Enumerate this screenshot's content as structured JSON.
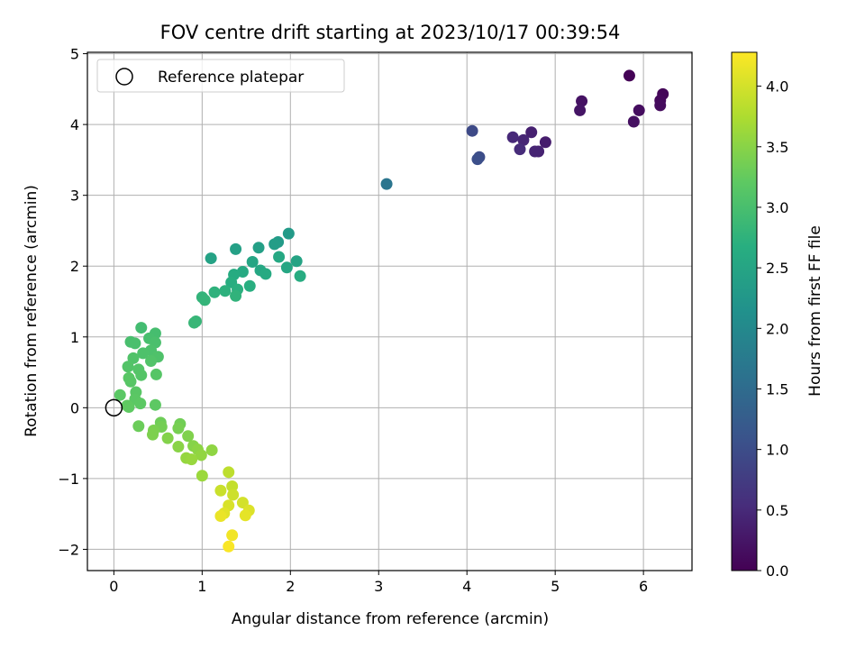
{
  "chart_data": {
    "type": "scatter",
    "title": "FOV centre drift starting at 2023/10/17 00:39:54",
    "xlabel": "Angular distance from reference (arcmin)",
    "ylabel": "Rotation from reference (arcmin)",
    "xlim": [
      -0.3,
      6.55
    ],
    "ylim": [
      -2.3,
      5.02
    ],
    "xticks": [
      "0",
      "1",
      "2",
      "3",
      "4",
      "5",
      "6"
    ],
    "xtick_values": [
      0,
      1,
      2,
      3,
      4,
      5,
      6
    ],
    "yticks": [
      "−2",
      "−1",
      "0",
      "1",
      "2",
      "3",
      "4",
      "5"
    ],
    "ytick_values": [
      -2,
      -1,
      0,
      1,
      2,
      3,
      4,
      5
    ],
    "grid": true,
    "legend": {
      "position": "top-left",
      "entries": [
        "Reference platepar"
      ]
    },
    "reference_point": {
      "x": 0,
      "y": 0
    },
    "colorbar": {
      "label": "Hours from first FF file",
      "colormap": "viridis",
      "range": [
        0.0,
        4.28
      ],
      "ticks": [
        "0.0",
        "0.5",
        "1.0",
        "1.5",
        "2.0",
        "2.5",
        "3.0",
        "3.5",
        "4.0"
      ],
      "tick_values": [
        0.0,
        0.5,
        1.0,
        1.5,
        2.0,
        2.5,
        3.0,
        3.5,
        4.0
      ]
    },
    "series": [
      {
        "values": [
          [
            5.84,
            4.69,
            0.03
          ],
          [
            6.22,
            4.43,
            0.06
          ],
          [
            6.19,
            4.34,
            0.09
          ],
          [
            6.19,
            4.27,
            0.12
          ],
          [
            5.95,
            4.2,
            0.15
          ],
          [
            5.89,
            4.04,
            0.18
          ],
          [
            5.3,
            4.33,
            0.21
          ],
          [
            5.28,
            4.2,
            0.24
          ],
          [
            4.89,
            3.75,
            0.34
          ],
          [
            4.73,
            3.89,
            0.38
          ],
          [
            4.81,
            3.62,
            0.4
          ],
          [
            4.77,
            3.62,
            0.42
          ],
          [
            4.64,
            3.78,
            0.45
          ],
          [
            4.52,
            3.82,
            0.49
          ],
          [
            4.6,
            3.65,
            0.52
          ],
          [
            4.06,
            3.91,
            0.95
          ],
          [
            4.14,
            3.54,
            1.0
          ],
          [
            4.12,
            3.51,
            1.02
          ],
          [
            3.09,
            3.16,
            1.65
          ],
          [
            1.98,
            2.46,
            2.3
          ],
          [
            1.86,
            2.34,
            2.33
          ],
          [
            1.82,
            2.31,
            2.36
          ],
          [
            1.64,
            2.26,
            2.39
          ],
          [
            1.38,
            2.24,
            2.42
          ],
          [
            1.1,
            2.11,
            2.45
          ],
          [
            2.07,
            2.07,
            2.48
          ],
          [
            1.57,
            2.06,
            2.5
          ],
          [
            1.96,
            1.98,
            2.52
          ],
          [
            1.66,
            1.94,
            2.54
          ],
          [
            1.87,
            2.13,
            2.56
          ],
          [
            1.46,
            1.92,
            2.58
          ],
          [
            1.72,
            1.89,
            2.6
          ],
          [
            1.36,
            1.88,
            2.62
          ],
          [
            2.11,
            1.86,
            2.64
          ],
          [
            1.33,
            1.77,
            2.66
          ],
          [
            1.54,
            1.72,
            2.68
          ],
          [
            1.4,
            1.67,
            2.7
          ],
          [
            1.26,
            1.65,
            2.72
          ],
          [
            1.14,
            1.63,
            2.74
          ],
          [
            1.38,
            1.58,
            2.76
          ],
          [
            1.0,
            1.56,
            2.78
          ],
          [
            1.03,
            1.52,
            2.8
          ],
          [
            0.93,
            1.22,
            2.82
          ],
          [
            0.91,
            1.2,
            2.84
          ],
          [
            0.31,
            1.13,
            2.95
          ],
          [
            0.47,
            1.05,
            2.97
          ],
          [
            0.4,
            0.98,
            2.99
          ],
          [
            0.19,
            0.93,
            3.0
          ],
          [
            0.24,
            0.91,
            3.01
          ],
          [
            0.47,
            0.92,
            3.02
          ],
          [
            0.42,
            0.81,
            3.04
          ],
          [
            0.33,
            0.77,
            3.05
          ],
          [
            0.5,
            0.72,
            3.06
          ],
          [
            0.22,
            0.7,
            3.08
          ],
          [
            0.42,
            0.66,
            3.09
          ],
          [
            0.16,
            0.58,
            3.1
          ],
          [
            0.28,
            0.54,
            3.11
          ],
          [
            0.31,
            0.46,
            3.12
          ],
          [
            0.48,
            0.47,
            3.13
          ],
          [
            0.19,
            0.37,
            3.14
          ],
          [
            0.17,
            0.42,
            3.15
          ],
          [
            0.25,
            0.22,
            3.16
          ],
          [
            0.07,
            0.18,
            3.17
          ],
          [
            0.24,
            0.12,
            3.18
          ],
          [
            0.3,
            0.06,
            3.19
          ],
          [
            0.47,
            0.04,
            3.2
          ],
          [
            0.17,
            0.01,
            3.21
          ],
          [
            0.15,
            0.03,
            3.22
          ],
          [
            0.28,
            -0.26,
            3.3
          ],
          [
            0.53,
            -0.21,
            3.32
          ],
          [
            0.75,
            -0.23,
            3.34
          ],
          [
            0.54,
            -0.27,
            3.36
          ],
          [
            0.73,
            -0.29,
            3.38
          ],
          [
            0.45,
            -0.32,
            3.4
          ],
          [
            0.44,
            -0.38,
            3.42
          ],
          [
            0.84,
            -0.4,
            3.44
          ],
          [
            0.61,
            -0.43,
            3.46
          ],
          [
            0.9,
            -0.54,
            3.48
          ],
          [
            0.73,
            -0.55,
            3.5
          ],
          [
            0.95,
            -0.59,
            3.52
          ],
          [
            1.11,
            -0.6,
            3.54
          ],
          [
            0.99,
            -0.67,
            3.56
          ],
          [
            0.82,
            -0.71,
            3.58
          ],
          [
            0.88,
            -0.73,
            3.6
          ],
          [
            1.0,
            -0.96,
            3.62
          ],
          [
            1.3,
            -0.91,
            3.85
          ],
          [
            1.34,
            -1.11,
            3.9
          ],
          [
            1.21,
            -1.17,
            3.93
          ],
          [
            1.35,
            -1.23,
            3.96
          ],
          [
            1.46,
            -1.34,
            4.0
          ],
          [
            1.3,
            -1.38,
            4.03
          ],
          [
            1.53,
            -1.45,
            4.06
          ],
          [
            1.25,
            -1.49,
            4.09
          ],
          [
            1.49,
            -1.52,
            4.12
          ],
          [
            1.21,
            -1.53,
            4.15
          ],
          [
            1.34,
            -1.8,
            4.2
          ],
          [
            1.3,
            -1.96,
            4.25
          ]
        ]
      }
    ]
  }
}
